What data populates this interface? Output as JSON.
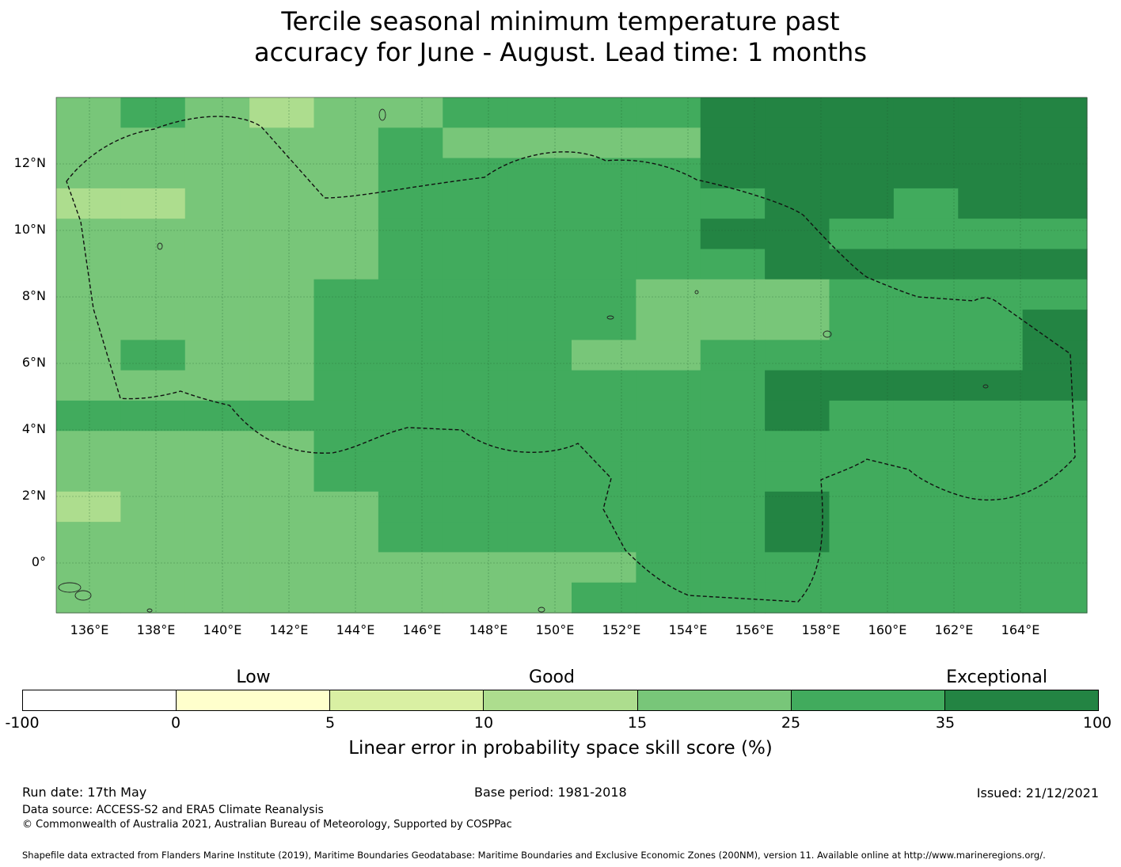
{
  "title": {
    "line1": "Tercile seasonal minimum temperature past",
    "line2": "accuracy for June - August. Lead time: 1 months"
  },
  "map": {
    "lat_labels": [
      "12°N",
      "10°N",
      "8°N",
      "6°N",
      "4°N",
      "2°N",
      "0°"
    ],
    "lon_labels": [
      "136°E",
      "138°E",
      "140°E",
      "142°E",
      "144°E",
      "146°E",
      "148°E",
      "150°E",
      "152°E",
      "154°E",
      "156°E",
      "158°E",
      "160°E",
      "162°E",
      "164°E"
    ],
    "colors": [
      "#ffffff",
      "#ffffcc",
      "#d9f0a3",
      "#addd8e",
      "#78c679",
      "#41ab5d",
      "#238443"
    ],
    "grid_rows": [
      "4543445555666666",
      "4444454444666666",
      "4444455555666666",
      "3344455555566566",
      "4444455555665555",
      "4444455555566666",
      "4444555554445555",
      "4444555554445556",
      "4544555544555556",
      "4444555555566666",
      "5555555555565555",
      "4444555555555555",
      "4444555555555555",
      "3444455555565555",
      "4444455555565555",
      "4444444445555555",
      "4444444455555555"
    ]
  },
  "legend": {
    "categories": [
      "Low",
      "Good",
      "Exceptional"
    ],
    "ticks": [
      "-100",
      "0",
      "5",
      "10",
      "15",
      "25",
      "35",
      "100"
    ],
    "colors": [
      "#ffffff",
      "#ffffcc",
      "#d9f0a3",
      "#addd8e",
      "#78c679",
      "#41ab5d",
      "#238443"
    ],
    "title": "Linear error in probability space skill score (%)"
  },
  "footer": {
    "run_date": "Run date: 17th May",
    "base_period": "Base period: 1981-2018",
    "issued": "Issued: 21/12/2021",
    "data_source": "Data source: ACCESS-S2 and ERA5 Climate Reanalysis",
    "copyright": "© Commonwealth of Australia 2021, Australian Bureau of Meteorology, Supported by COSPPac",
    "shapefile": "Shapefile data extracted from Flanders Marine Institute (2019), Maritime Boundaries Geodatabase: Maritime Boundaries and Exclusive Economic Zones (200NM), version 11. Available online at http://www.marineregions.org/."
  }
}
